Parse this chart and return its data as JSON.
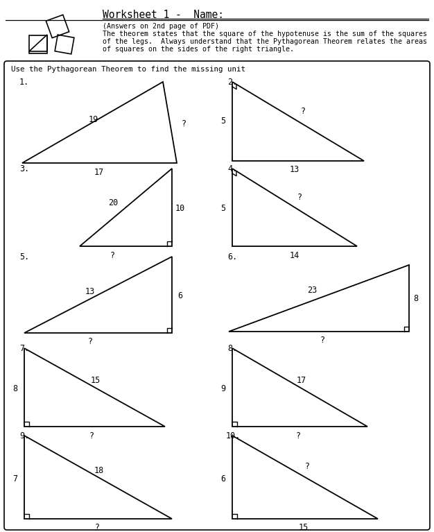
{
  "title": "Worksheet 1 -  Name:",
  "subtitle_line1": "(Answers on 2nd page of PDF)",
  "subtitle_line2": "The theorem states that the square of the hypotenuse is the sum of the squares",
  "subtitle_line3": "of the legs.  Always understand that the Pythagorean Theorem relates the areas",
  "subtitle_line4": "of squares on the sides of the right triangle.",
  "instruction": "Use the Pythagorean Theorem to find the missing unit",
  "bg_color": "#ffffff",
  "problems": [
    {
      "num": "1.",
      "labels": [
        "19",
        "17",
        "?"
      ],
      "type": "scalene_right_peak"
    },
    {
      "num": "2.",
      "labels": [
        "5",
        "13",
        "?"
      ],
      "type": "right_topleft"
    },
    {
      "num": "3.",
      "labels": [
        "20",
        "?",
        "10"
      ],
      "type": "right_bottomright_tall"
    },
    {
      "num": "4.",
      "labels": [
        "5",
        "14",
        "?"
      ],
      "type": "right_topleft"
    },
    {
      "num": "5.",
      "labels": [
        "13",
        "?",
        "6"
      ],
      "type": "right_bottomright_tall"
    },
    {
      "num": "6.",
      "labels": [
        "23",
        "?",
        "8"
      ],
      "type": "right_bottomright_wide"
    },
    {
      "num": "7.",
      "labels": [
        "15",
        "8",
        "?"
      ],
      "type": "right_bottomleft"
    },
    {
      "num": "8.",
      "labels": [
        "17",
        "9",
        "?"
      ],
      "type": "right_bottomleft"
    },
    {
      "num": "9.",
      "labels": [
        "18",
        "7",
        "?"
      ],
      "type": "right_bottomleft"
    },
    {
      "num": "10.",
      "labels": [
        "?",
        "6",
        "15"
      ],
      "type": "right_bottomleft"
    }
  ]
}
